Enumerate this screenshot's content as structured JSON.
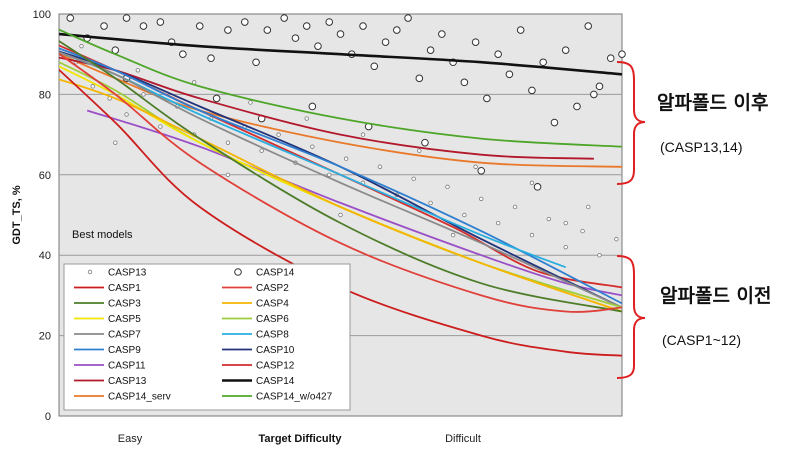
{
  "chart_data": {
    "type": "scatter",
    "title": "",
    "xlabel": "Target Difficulty",
    "ylabel": "GDT_TS, %",
    "xlim": [
      0,
      100
    ],
    "ylim": [
      0,
      100
    ],
    "y_ticks": [
      "0",
      "20",
      "40",
      "60",
      "80",
      "100"
    ],
    "x_category_labels": [
      "Easy",
      "Difficult"
    ],
    "panel_label": "Best models",
    "grid": "horizontal",
    "colors": {
      "CASP1": "#cc1d1d",
      "CASP2": "#e0403a",
      "CASP3": "#4e7d2a",
      "CASP4": "#f4b400",
      "CASP5": "#f2e600",
      "CASP6": "#9ccc3a",
      "CASP7": "#8a8a8a",
      "CASP8": "#29aee0",
      "CASP9": "#2f7fd1",
      "CASP10": "#22337a",
      "CASP11": "#9b4fc7",
      "CASP12": "#d52c2c",
      "CASP13": "#b3172b",
      "CASP14": "#111111",
      "CASP14_serv": "#e9782a",
      "CASP14_w/o427": "#4ea629"
    },
    "legend": [
      {
        "label": "CASP13",
        "kind": "small-dot"
      },
      {
        "label": "CASP14",
        "kind": "open-circle"
      },
      {
        "label": "CASP1",
        "kind": "line"
      },
      {
        "label": "CASP2",
        "kind": "line"
      },
      {
        "label": "CASP3",
        "kind": "line"
      },
      {
        "label": "CASP4",
        "kind": "line"
      },
      {
        "label": "CASP5",
        "kind": "line"
      },
      {
        "label": "CASP6",
        "kind": "line"
      },
      {
        "label": "CASP7",
        "kind": "line"
      },
      {
        "label": "CASP8",
        "kind": "line"
      },
      {
        "label": "CASP9",
        "kind": "line"
      },
      {
        "label": "CASP10",
        "kind": "line"
      },
      {
        "label": "CASP11",
        "kind": "line"
      },
      {
        "label": "CASP12",
        "kind": "line"
      },
      {
        "label": "CASP13",
        "kind": "line"
      },
      {
        "label": "CASP14",
        "kind": "line"
      },
      {
        "label": "CASP14_serv",
        "kind": "line"
      },
      {
        "label": "CASP14_w/o427",
        "kind": "line"
      }
    ],
    "series": [
      {
        "name": "CASP14",
        "values": [
          [
            0,
            95
          ],
          [
            25,
            92
          ],
          [
            50,
            90
          ],
          [
            75,
            88
          ],
          [
            100,
            85
          ]
        ]
      },
      {
        "name": "CASP14_w/o427",
        "values": [
          [
            -3,
            98
          ],
          [
            10,
            90
          ],
          [
            25,
            82
          ],
          [
            50,
            74
          ],
          [
            75,
            69
          ],
          [
            100,
            67
          ]
        ]
      },
      {
        "name": "CASP14_serv",
        "values": [
          [
            -3,
            92
          ],
          [
            10,
            84
          ],
          [
            25,
            76
          ],
          [
            50,
            68
          ],
          [
            75,
            63
          ],
          [
            100,
            62
          ]
        ]
      },
      {
        "name": "CASP13",
        "values": [
          [
            -3,
            90
          ],
          [
            10,
            86
          ],
          [
            25,
            79
          ],
          [
            50,
            70
          ],
          [
            75,
            65
          ],
          [
            95,
            64
          ]
        ]
      },
      {
        "name": "CASP12",
        "values": [
          [
            -3,
            94
          ],
          [
            10,
            86
          ],
          [
            25,
            76
          ],
          [
            50,
            60
          ],
          [
            70,
            47
          ],
          [
            85,
            36
          ],
          [
            100,
            32
          ]
        ]
      },
      {
        "name": "CASP11",
        "values": [
          [
            5,
            76
          ],
          [
            25,
            67
          ],
          [
            50,
            53
          ],
          [
            75,
            40
          ],
          [
            90,
            33
          ],
          [
            100,
            30
          ]
        ]
      },
      {
        "name": "CASP10",
        "values": [
          [
            -3,
            92
          ],
          [
            10,
            86
          ],
          [
            25,
            77
          ],
          [
            50,
            62
          ],
          [
            75,
            44
          ],
          [
            100,
            27
          ]
        ]
      },
      {
        "name": "CASP9",
        "values": [
          [
            -3,
            93
          ],
          [
            10,
            86
          ],
          [
            25,
            76
          ],
          [
            50,
            62
          ],
          [
            75,
            46
          ],
          [
            100,
            28
          ]
        ]
      },
      {
        "name": "CASP8",
        "values": [
          [
            -3,
            92
          ],
          [
            10,
            85
          ],
          [
            25,
            75
          ],
          [
            50,
            60
          ],
          [
            75,
            45
          ],
          [
            90,
            37
          ]
        ]
      },
      {
        "name": "CASP7",
        "values": [
          [
            -3,
            92
          ],
          [
            10,
            85
          ],
          [
            25,
            74
          ],
          [
            50,
            58
          ],
          [
            75,
            43
          ],
          [
            100,
            27
          ]
        ]
      },
      {
        "name": "CASP6",
        "values": [
          [
            -3,
            90
          ],
          [
            10,
            81
          ],
          [
            25,
            68
          ],
          [
            50,
            52
          ],
          [
            75,
            38
          ],
          [
            100,
            27
          ]
        ]
      },
      {
        "name": "CASP5",
        "values": [
          [
            -3,
            89
          ],
          [
            10,
            80
          ],
          [
            25,
            68
          ],
          [
            50,
            52
          ],
          [
            75,
            38
          ],
          [
            100,
            26
          ]
        ]
      },
      {
        "name": "CASP4",
        "values": [
          [
            -3,
            85
          ],
          [
            10,
            79
          ],
          [
            25,
            69
          ],
          [
            50,
            52
          ],
          [
            75,
            38
          ],
          [
            100,
            26
          ]
        ]
      },
      {
        "name": "CASP3",
        "values": [
          [
            -3,
            96
          ],
          [
            10,
            84
          ],
          [
            25,
            69
          ],
          [
            50,
            48
          ],
          [
            75,
            33
          ],
          [
            100,
            26
          ]
        ]
      },
      {
        "name": "CASP2",
        "values": [
          [
            -3,
            93
          ],
          [
            10,
            80
          ],
          [
            25,
            63
          ],
          [
            50,
            43
          ],
          [
            75,
            30
          ],
          [
            90,
            26
          ],
          [
            100,
            27
          ]
        ]
      },
      {
        "name": "CASP1",
        "values": [
          [
            -3,
            90
          ],
          [
            10,
            73
          ],
          [
            25,
            52
          ],
          [
            50,
            32
          ],
          [
            75,
            20
          ],
          [
            90,
            16
          ],
          [
            100,
            15
          ]
        ]
      }
    ],
    "points": {
      "CASP14_open_circles": [
        [
          2,
          99
        ],
        [
          5,
          94
        ],
        [
          8,
          97
        ],
        [
          10,
          91
        ],
        [
          12,
          99
        ],
        [
          15,
          97
        ],
        [
          18,
          98
        ],
        [
          20,
          93
        ],
        [
          22,
          90
        ],
        [
          25,
          97
        ],
        [
          27,
          89
        ],
        [
          30,
          96
        ],
        [
          33,
          98
        ],
        [
          35,
          88
        ],
        [
          37,
          96
        ],
        [
          40,
          99
        ],
        [
          42,
          94
        ],
        [
          44,
          97
        ],
        [
          46,
          92
        ],
        [
          48,
          98
        ],
        [
          50,
          95
        ],
        [
          52,
          90
        ],
        [
          54,
          97
        ],
        [
          56,
          87
        ],
        [
          58,
          93
        ],
        [
          60,
          96
        ],
        [
          62,
          99
        ],
        [
          64,
          84
        ],
        [
          66,
          91
        ],
        [
          68,
          95
        ],
        [
          70,
          88
        ],
        [
          72,
          83
        ],
        [
          74,
          93
        ],
        [
          76,
          79
        ],
        [
          78,
          90
        ],
        [
          80,
          85
        ],
        [
          82,
          96
        ],
        [
          84,
          81
        ],
        [
          86,
          88
        ],
        [
          88,
          73
        ],
        [
          90,
          91
        ],
        [
          92,
          77
        ],
        [
          94,
          97
        ],
        [
          96,
          82
        ],
        [
          98,
          89
        ],
        [
          100,
          90
        ],
        [
          12,
          84
        ],
        [
          28,
          79
        ],
        [
          36,
          74
        ],
        [
          45,
          77
        ],
        [
          55,
          72
        ],
        [
          65,
          68
        ],
        [
          75,
          61
        ],
        [
          85,
          57
        ],
        [
          95,
          80
        ]
      ],
      "CASP13_small_dots": [
        [
          3,
          88
        ],
        [
          6,
          82
        ],
        [
          9,
          79
        ],
        [
          12,
          75
        ],
        [
          15,
          80
        ],
        [
          18,
          72
        ],
        [
          21,
          77
        ],
        [
          24,
          70
        ],
        [
          27,
          74
        ],
        [
          30,
          68
        ],
        [
          33,
          72
        ],
        [
          36,
          66
        ],
        [
          39,
          70
        ],
        [
          42,
          63
        ],
        [
          45,
          67
        ],
        [
          48,
          60
        ],
        [
          51,
          64
        ],
        [
          54,
          58
        ],
        [
          57,
          62
        ],
        [
          60,
          55
        ],
        [
          63,
          59
        ],
        [
          66,
          53
        ],
        [
          69,
          57
        ],
        [
          72,
          50
        ],
        [
          75,
          54
        ],
        [
          78,
          48
        ],
        [
          81,
          52
        ],
        [
          84,
          45
        ],
        [
          87,
          49
        ],
        [
          90,
          42
        ],
        [
          93,
          46
        ],
        [
          96,
          40
        ],
        [
          99,
          44
        ],
        [
          4,
          92
        ],
        [
          14,
          86
        ],
        [
          24,
          83
        ],
        [
          34,
          78
        ],
        [
          44,
          74
        ],
        [
          54,
          70
        ],
        [
          64,
          66
        ],
        [
          74,
          62
        ],
        [
          84,
          58
        ],
        [
          94,
          52
        ],
        [
          10,
          68
        ],
        [
          30,
          60
        ],
        [
          50,
          50
        ],
        [
          70,
          45
        ],
        [
          90,
          48
        ]
      ]
    }
  },
  "annotations": [
    {
      "title": "알파폴드 이후",
      "subtitle": "(CASP13,14)"
    },
    {
      "title": "알파폴드 이전",
      "subtitle": "(CASP1~12)"
    }
  ],
  "annotation_color": "#e02020"
}
